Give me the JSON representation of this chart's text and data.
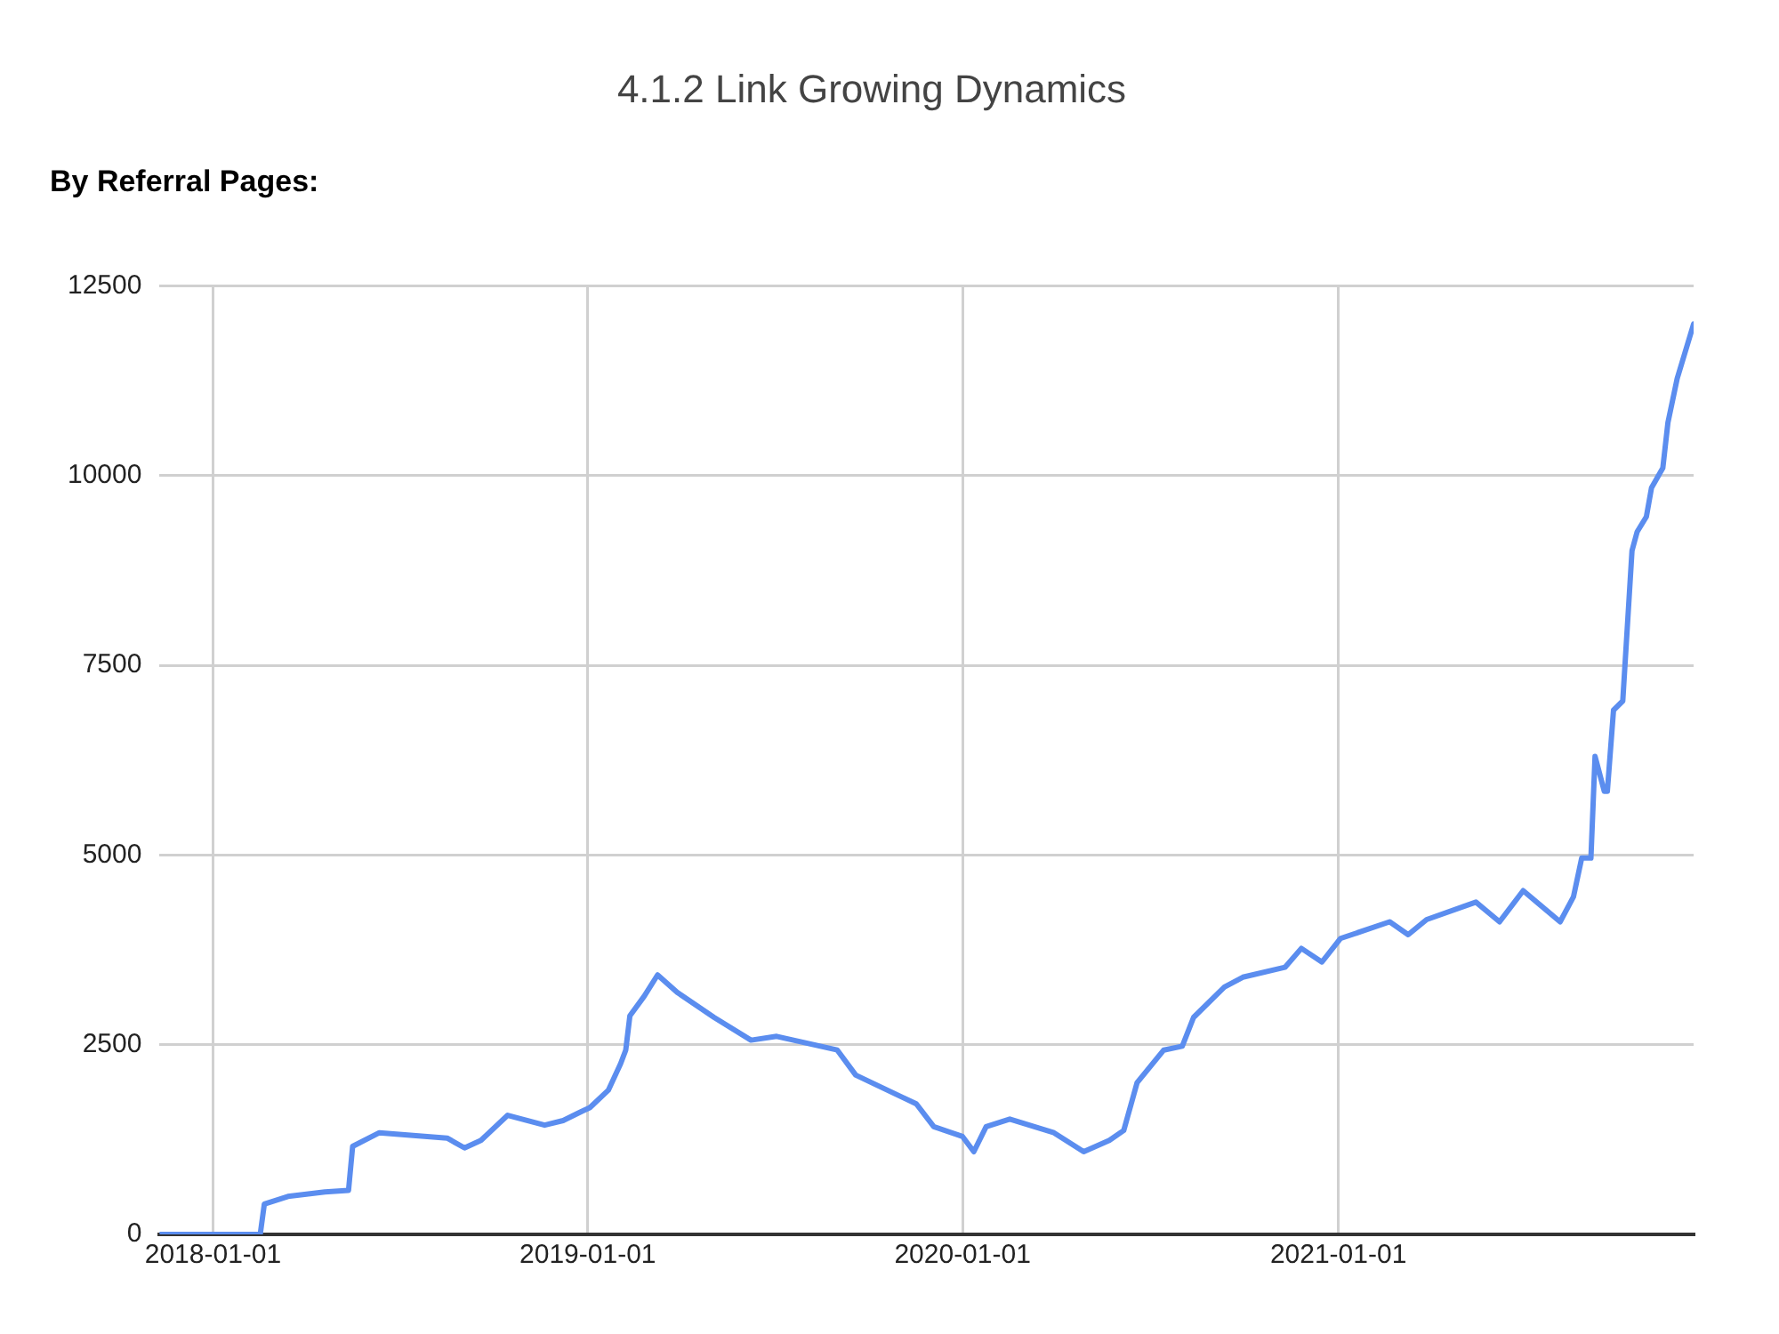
{
  "chart_data": {
    "type": "line",
    "title": "4.1.2 Link Growing Dynamics",
    "subtitle": "By Referral Pages:",
    "x": [
      "2017-11-10",
      "2018-02-16",
      "2018-02-20",
      "2018-03-15",
      "2018-04-20",
      "2018-05-13",
      "2018-05-17",
      "2018-06-12",
      "2018-08-17",
      "2018-09-03",
      "2018-09-19",
      "2018-10-15",
      "2018-11-20",
      "2018-12-08",
      "2018-12-26",
      "2019-01-03",
      "2019-01-21",
      "2019-02-02",
      "2019-02-07",
      "2019-02-11",
      "2019-02-25",
      "2019-03-10",
      "2019-03-29",
      "2019-05-04",
      "2019-06-09",
      "2019-07-04",
      "2019-09-01",
      "2019-09-19",
      "2019-11-17",
      "2019-12-04",
      "2020-01-01",
      "2020-01-12",
      "2020-01-24",
      "2020-02-16",
      "2020-03-30",
      "2020-04-28",
      "2020-05-23",
      "2020-06-06",
      "2020-06-19",
      "2020-07-15",
      "2020-08-02",
      "2020-08-13",
      "2020-09-12",
      "2020-09-30",
      "2020-11-10",
      "2020-11-26",
      "2020-12-16",
      "2021-01-03",
      "2021-02-20",
      "2021-03-10",
      "2021-03-28",
      "2021-05-15",
      "2021-06-07",
      "2021-06-30",
      "2021-08-05",
      "2021-08-18",
      "2021-08-26",
      "2021-09-04",
      "2021-09-08",
      "2021-09-17",
      "2021-09-20",
      "2021-09-26",
      "2021-10-05",
      "2021-10-14",
      "2021-10-19",
      "2021-10-28",
      "2021-11-02",
      "2021-11-13",
      "2021-11-18",
      "2021-11-27",
      "2021-12-13"
    ],
    "series": [
      {
        "color": "#5b8def",
        "values": [
          0,
          0,
          400,
          500,
          560,
          580,
          1160,
          1340,
          1270,
          1140,
          1240,
          1570,
          1440,
          1500,
          1620,
          1670,
          1900,
          2250,
          2430,
          2880,
          3140,
          3420,
          3190,
          2860,
          2560,
          2610,
          2430,
          2100,
          1720,
          1420,
          1290,
          1090,
          1420,
          1520,
          1340,
          1090,
          1240,
          1370,
          2000,
          2430,
          2480,
          2860,
          3260,
          3390,
          3520,
          3770,
          3590,
          3900,
          4120,
          3950,
          4150,
          4380,
          4120,
          4530,
          4120,
          4450,
          4960,
          4960,
          6300,
          5840,
          5840,
          6910,
          7030,
          9010,
          9260,
          9460,
          9840,
          10100,
          10700,
          11280,
          12000
        ]
      }
    ],
    "xlim": [
      "2017-11-10",
      "2021-12-13"
    ],
    "xticks": [
      "2018-01-01",
      "2019-01-01",
      "2020-01-01",
      "2021-01-01"
    ],
    "ylim": [
      0,
      12500
    ],
    "yticks": [
      0,
      2500,
      5000,
      7500,
      10000,
      12500
    ],
    "grid": true,
    "legend": false,
    "marker": "none",
    "line_style": "solid"
  }
}
